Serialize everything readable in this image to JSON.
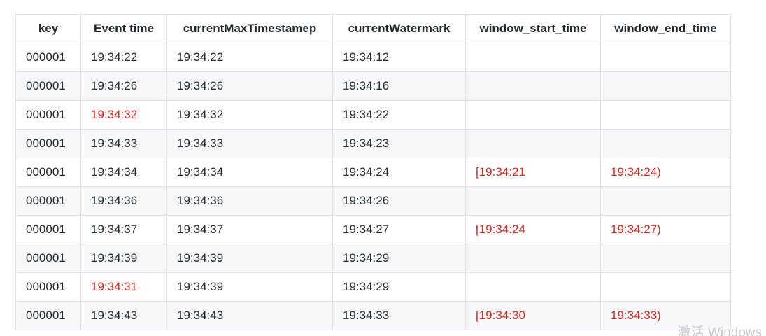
{
  "table": {
    "headers": [
      "key",
      "Event time",
      "currentMaxTimestamep",
      "currentWatermark",
      "window_start_time",
      "window_end_time"
    ],
    "rows": [
      {
        "key": "000001",
        "event_time": "19:34:22",
        "current_max_timestamp": "19:34:22",
        "current_watermark": "19:34:12",
        "window_start_time": "",
        "window_end_time": ""
      },
      {
        "key": "000001",
        "event_time": "19:34:26",
        "current_max_timestamp": "19:34:26",
        "current_watermark": "19:34:16",
        "window_start_time": "",
        "window_end_time": ""
      },
      {
        "key": "000001",
        "event_time": "19:34:32",
        "current_max_timestamp": "19:34:32",
        "current_watermark": "19:34:22",
        "window_start_time": "",
        "window_end_time": "",
        "event_time_highlight": true
      },
      {
        "key": "000001",
        "event_time": "19:34:33",
        "current_max_timestamp": "19:34:33",
        "current_watermark": "19:34:23",
        "window_start_time": "",
        "window_end_time": ""
      },
      {
        "key": "000001",
        "event_time": "19:34:34",
        "current_max_timestamp": "19:34:34",
        "current_watermark": "19:34:24",
        "window_start_time": "[19:34:21",
        "window_end_time": "19:34:24)"
      },
      {
        "key": "000001",
        "event_time": "19:34:36",
        "current_max_timestamp": "19:34:36",
        "current_watermark": "19:34:26",
        "window_start_time": "",
        "window_end_time": ""
      },
      {
        "key": "000001",
        "event_time": "19:34:37",
        "current_max_timestamp": "19:34:37",
        "current_watermark": "19:34:27",
        "window_start_time": "[19:34:24",
        "window_end_time": "19:34:27)"
      },
      {
        "key": "000001",
        "event_time": "19:34:39",
        "current_max_timestamp": "19:34:39",
        "current_watermark": "19:34:29",
        "window_start_time": "",
        "window_end_time": ""
      },
      {
        "key": "000001",
        "event_time": "19:34:31",
        "current_max_timestamp": "19:34:39",
        "current_watermark": "19:34:29",
        "window_start_time": "",
        "window_end_time": "",
        "event_time_highlight": true
      },
      {
        "key": "000001",
        "event_time": "19:34:43",
        "current_max_timestamp": "19:34:43",
        "current_watermark": "19:34:33",
        "window_start_time": "[19:34:30",
        "window_end_time": "19:34:33)"
      }
    ]
  },
  "highlight_color": "#e0231e",
  "watermark_text": "激活 Windows"
}
